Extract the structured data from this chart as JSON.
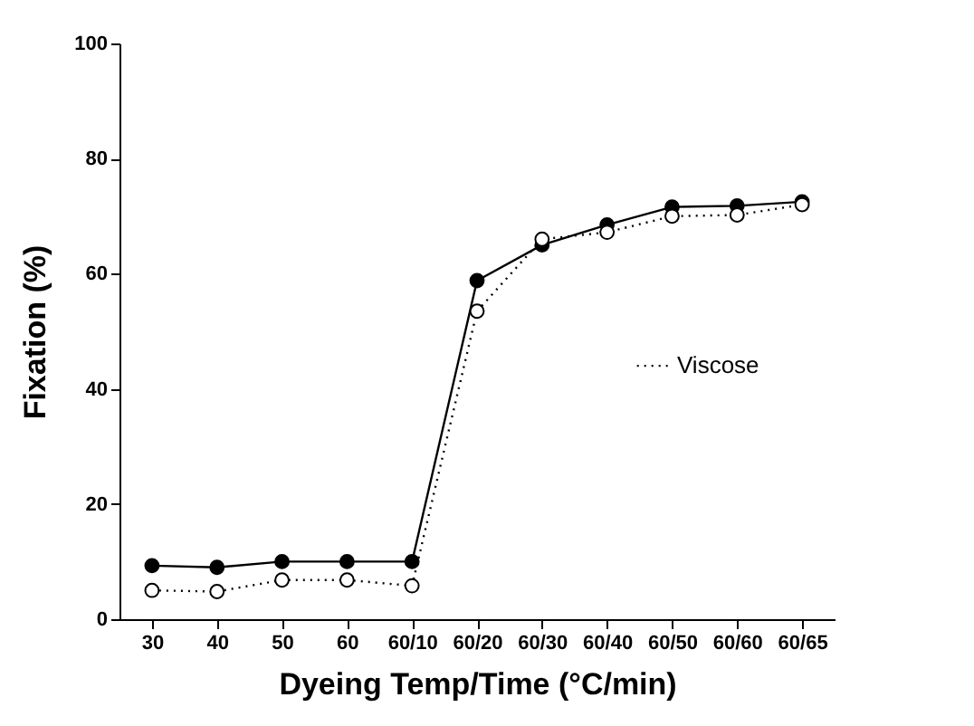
{
  "chart_data": {
    "type": "line",
    "xlabel": "Dyeing Temp/Time (°C/min)",
    "ylabel": "Fixation (%)",
    "categories": [
      "30",
      "40",
      "50",
      "60",
      "60/10",
      "60/20",
      "60/30",
      "60/40",
      "60/50",
      "60/60",
      "60/65"
    ],
    "series": [
      {
        "color": "#000000",
        "line_style": "solid",
        "values": [
          9.3,
          9.0,
          10.0,
          10.0,
          10.0,
          58.8,
          65.0,
          68.5,
          71.6,
          71.8,
          72.5
        ]
      },
      {
        "name": "Viscose",
        "color": "#000000",
        "line_style": "dotted",
        "values": [
          5.0,
          4.8,
          6.8,
          6.8,
          5.8,
          53.5,
          66.0,
          67.2,
          70.0,
          70.2,
          72.0
        ]
      }
    ],
    "ylim": [
      0,
      100
    ],
    "yticks": [
      0,
      20,
      40,
      60,
      80,
      100
    ],
    "grid": false,
    "legend": "right",
    "marker": "circle"
  }
}
